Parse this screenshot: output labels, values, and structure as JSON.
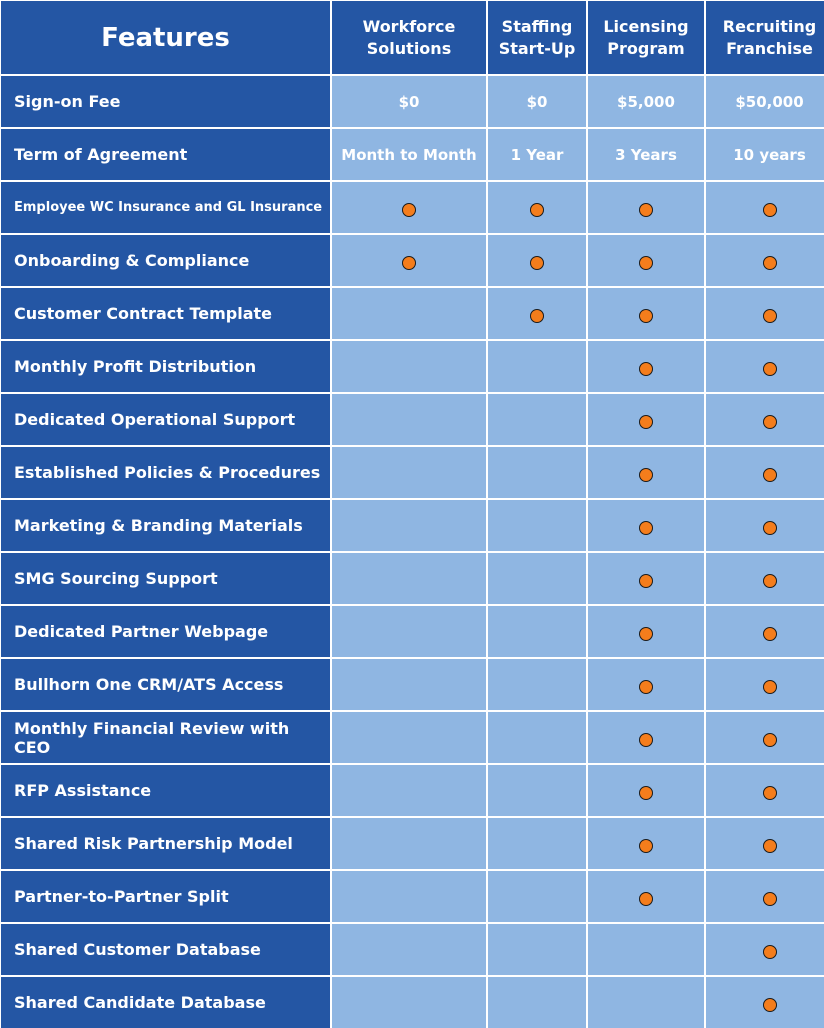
{
  "header": {
    "features_label": "Features",
    "plans": [
      "Workforce\nSolutions",
      "Staffing\nStart-Up",
      "Licensing\nProgram",
      "Recruiting\nFranchise"
    ]
  },
  "marker_color": "#f47d1c",
  "header_color": "#2456a4",
  "cell_color": "#8fb6e2",
  "rows": [
    {
      "feature": "Sign-on Fee",
      "values": [
        "$0",
        "$0",
        "$5,000",
        "$50,000"
      ]
    },
    {
      "feature": "Term of Agreement",
      "values": [
        "Month to Month",
        "1 Year",
        "3 Years",
        "10 years"
      ]
    },
    {
      "feature": "Employee WC Insurance and GL Insurance",
      "included": [
        true,
        true,
        true,
        true
      ]
    },
    {
      "feature": "Onboarding & Compliance",
      "included": [
        true,
        true,
        true,
        true
      ]
    },
    {
      "feature": "Customer Contract Template",
      "included": [
        false,
        true,
        true,
        true
      ]
    },
    {
      "feature": "Monthly Profit Distribution",
      "included": [
        false,
        false,
        true,
        true
      ]
    },
    {
      "feature": "Dedicated Operational Support",
      "included": [
        false,
        false,
        true,
        true
      ]
    },
    {
      "feature": "Established Policies & Procedures",
      "included": [
        false,
        false,
        true,
        true
      ]
    },
    {
      "feature": "Marketing & Branding Materials",
      "included": [
        false,
        false,
        true,
        true
      ]
    },
    {
      "feature": "SMG Sourcing Support",
      "included": [
        false,
        false,
        true,
        true
      ]
    },
    {
      "feature": "Dedicated Partner Webpage",
      "included": [
        false,
        false,
        true,
        true
      ]
    },
    {
      "feature": "Bullhorn One CRM/ATS Access",
      "included": [
        false,
        false,
        true,
        true
      ]
    },
    {
      "feature": "Monthly Financial Review with CEO",
      "included": [
        false,
        false,
        true,
        true
      ]
    },
    {
      "feature": "RFP Assistance",
      "included": [
        false,
        false,
        true,
        true
      ]
    },
    {
      "feature": "Shared Risk Partnership Model",
      "included": [
        false,
        false,
        true,
        true
      ]
    },
    {
      "feature": "Partner-to-Partner Split",
      "included": [
        false,
        false,
        true,
        true
      ]
    },
    {
      "feature": "Shared Customer Database",
      "included": [
        false,
        false,
        false,
        true
      ]
    },
    {
      "feature": "Shared Candidate Database",
      "included": [
        false,
        false,
        false,
        true
      ]
    }
  ]
}
